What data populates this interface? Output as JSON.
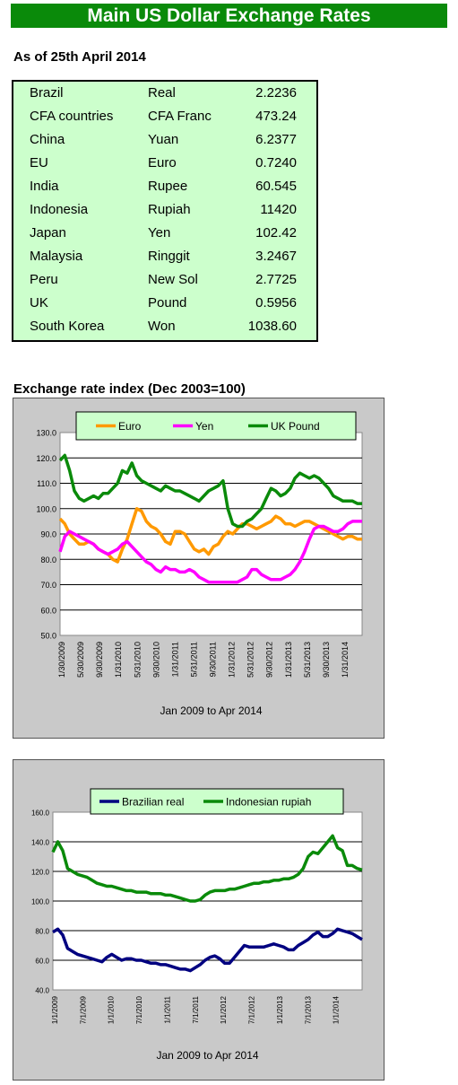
{
  "header": {
    "title": "Main US Dollar Exchange Rates"
  },
  "as_of": "As of 25th April 2014",
  "rates": [
    {
      "country": "Brazil",
      "currency": "Real",
      "rate": "2.2236"
    },
    {
      "country": "CFA countries",
      "currency": "CFA Franc",
      "rate": "473.24"
    },
    {
      "country": "China",
      "currency": "Yuan",
      "rate": "6.2377"
    },
    {
      "country": "EU",
      "currency": "Euro",
      "rate": "0.7240"
    },
    {
      "country": "India",
      "currency": "Rupee",
      "rate": "60.545"
    },
    {
      "country": "Indonesia",
      "currency": "Rupiah",
      "rate": "11420"
    },
    {
      "country": "Japan",
      "currency": "Yen",
      "rate": "102.42"
    },
    {
      "country": "Malaysia",
      "currency": "Ringgit",
      "rate": "3.2467"
    },
    {
      "country": "Peru",
      "currency": "New Sol",
      "rate": "2.7725"
    },
    {
      "country": "UK",
      "currency": "Pound",
      "rate": "0.5956"
    },
    {
      "country": "South Korea",
      "currency": "Won",
      "rate": "1038.60"
    }
  ],
  "section_title": "Exchange rate index (Dec 2003=100)",
  "chart_data": [
    {
      "type": "line",
      "xlabel": "Jan 2009 to Apr 2014",
      "ylim": [
        50,
        130
      ],
      "yticks": [
        "50.0",
        "60.0",
        "70.0",
        "80.0",
        "90.0",
        "100.0",
        "110.0",
        "120.0",
        "130.0"
      ],
      "xticks": [
        "1/30/2009",
        "5/30/2009",
        "9/30/2009",
        "1/31/2010",
        "5/31/2010",
        "9/30/2010",
        "1/31/2011",
        "5/31/2011",
        "9/30/2011",
        "1/31/2012",
        "5/31/2012",
        "9/30/2012",
        "1/31/2013",
        "5/31/2013",
        "9/30/2013",
        "1/31/2014"
      ],
      "grid": true,
      "legend": "top",
      "series": [
        {
          "name": "Euro",
          "color": "#ff9900",
          "values": [
            96,
            94,
            90,
            88,
            86,
            86,
            87,
            86,
            84,
            83,
            82,
            80,
            79,
            84,
            88,
            94,
            100,
            99,
            95,
            93,
            92,
            90,
            87,
            86,
            91,
            91,
            90,
            87,
            84,
            83,
            84,
            82,
            85,
            86,
            89,
            91,
            90,
            92,
            94,
            94,
            93,
            92,
            93,
            94,
            95,
            97,
            96,
            94,
            94,
            93,
            94,
            95,
            95,
            94,
            93,
            92,
            91,
            90,
            89,
            88,
            89,
            89,
            88,
            88
          ]
        },
        {
          "name": "Yen",
          "color": "#ff00ff",
          "values": [
            83,
            89,
            91,
            90,
            89,
            88,
            87,
            86,
            84,
            83,
            82,
            83,
            84,
            86,
            87,
            85,
            83,
            81,
            79,
            78,
            76,
            75,
            77,
            76,
            76,
            75,
            75,
            76,
            75,
            73,
            72,
            71,
            71,
            71,
            71,
            71,
            71,
            71,
            72,
            73,
            76,
            76,
            74,
            73,
            72,
            72,
            72,
            73,
            74,
            76,
            79,
            83,
            88,
            92,
            93,
            93,
            92,
            91,
            91,
            92,
            94,
            95,
            95,
            95
          ]
        },
        {
          "name": "UK Pound",
          "color": "#0a8a0a",
          "values": [
            119,
            121,
            115,
            107,
            104,
            103,
            104,
            105,
            104,
            106,
            106,
            108,
            110,
            115,
            114,
            118,
            113,
            111,
            110,
            109,
            108,
            107,
            109,
            108,
            107,
            107,
            106,
            105,
            104,
            103,
            105,
            107,
            108,
            109,
            111,
            100,
            94,
            93,
            93,
            95,
            96,
            98,
            100,
            104,
            108,
            107,
            105,
            106,
            108,
            112,
            114,
            113,
            112,
            113,
            112,
            110,
            108,
            105,
            104,
            103,
            103,
            103,
            102,
            102
          ]
        }
      ]
    },
    {
      "type": "line",
      "xlabel": "Jan 2009 to Apr 2014",
      "ylim": [
        40,
        160
      ],
      "yticks": [
        "40.0",
        "60.0",
        "80.0",
        "100.0",
        "120.0",
        "140.0",
        "160.0"
      ],
      "xticks": [
        "1/1/2009",
        "7/1/2009",
        "1/1/2010",
        "7/1/2010",
        "1/1/2011",
        "7/1/2011",
        "1/1/2012",
        "7/1/2012",
        "1/1/2013",
        "7/1/2013",
        "1/1/2014"
      ],
      "grid": true,
      "legend": "top",
      "series": [
        {
          "name": "Brazilian real",
          "color": "#000080",
          "values": [
            79,
            81,
            77,
            68,
            66,
            64,
            63,
            62,
            61,
            60,
            59,
            62,
            64,
            62,
            60,
            61,
            61,
            60,
            60,
            59,
            58,
            58,
            57,
            57,
            56,
            55,
            54,
            54,
            53,
            55,
            57,
            60,
            62,
            63,
            61,
            58,
            58,
            62,
            66,
            70,
            69,
            69,
            69,
            69,
            70,
            71,
            70,
            69,
            67,
            67,
            70,
            72,
            74,
            77,
            79,
            76,
            76,
            78,
            81,
            80,
            79,
            78,
            76,
            74
          ]
        },
        {
          "name": "Indonesian rupiah",
          "color": "#0a8a0a",
          "values": [
            133,
            140,
            134,
            122,
            120,
            118,
            117,
            116,
            114,
            112,
            111,
            110,
            110,
            109,
            108,
            107,
            107,
            106,
            106,
            106,
            105,
            105,
            105,
            104,
            104,
            103,
            102,
            101,
            100,
            100,
            101,
            104,
            106,
            107,
            107,
            107,
            108,
            108,
            109,
            110,
            111,
            112,
            112,
            113,
            113,
            114,
            114,
            115,
            115,
            116,
            118,
            122,
            130,
            133,
            132,
            136,
            140,
            144,
            136,
            134,
            124,
            124,
            122,
            121
          ]
        }
      ]
    }
  ]
}
